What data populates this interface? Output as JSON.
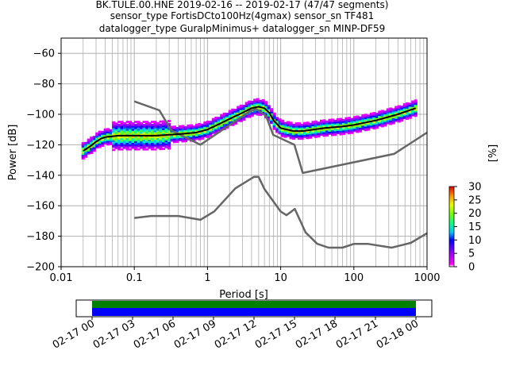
{
  "title_lines": [
    "BK.TULE.00.HNE   2019-02-16 -- 2019-02-17  (47/47 segments)",
    "sensor_type FortisDCto100Hz(4gmax) sensor_sn TF481",
    "datalogger_type GuralpMinimus+ datalogger_sn MINP-DF59"
  ],
  "chart_data": {
    "type": "heatmap",
    "xlabel": "Period [s]",
    "ylabel": "Power [dB]",
    "xscale": "log",
    "xlim": [
      0.01,
      1000
    ],
    "ylim": [
      -200,
      -50
    ],
    "grid": true,
    "x_ticks": [
      {
        "value": 0.01,
        "label": "0.01"
      },
      {
        "value": 0.1,
        "label": "0.1"
      },
      {
        "value": 1,
        "label": "1"
      },
      {
        "value": 10,
        "label": "10"
      },
      {
        "value": 100,
        "label": "100"
      },
      {
        "value": 1000,
        "label": "1000"
      }
    ],
    "y_ticks": [
      {
        "value": -60,
        "label": "−60"
      },
      {
        "value": -80,
        "label": "−80"
      },
      {
        "value": -100,
        "label": "−100"
      },
      {
        "value": -120,
        "label": "−120"
      },
      {
        "value": -140,
        "label": "−140"
      },
      {
        "value": -160,
        "label": "−160"
      },
      {
        "value": -180,
        "label": "−180"
      },
      {
        "value": -200,
        "label": "−200"
      }
    ],
    "mode_curve": {
      "x": [
        0.02,
        0.025,
        0.03,
        0.035,
        0.04,
        0.06,
        0.1,
        0.2,
        0.4,
        0.7,
        1.0,
        1.5,
        2.0,
        3.0,
        4.0,
        5.0,
        6.0,
        7.0,
        8.0,
        10.0,
        15.0,
        20.0,
        40.0,
        70.0,
        100.0,
        200.0,
        400.0,
        700.0
      ],
      "y": [
        -124,
        -121,
        -118,
        -116,
        -115,
        -114,
        -114,
        -114,
        -113,
        -112,
        -110,
        -106,
        -103,
        -99,
        -96,
        -95,
        -96,
        -99,
        -104,
        -109,
        -111,
        -111,
        -109,
        -108,
        -107,
        -104,
        -100,
        -96
      ]
    },
    "nlnm": {
      "x": [
        0.1,
        0.17,
        0.4,
        0.8,
        1.24,
        2.4,
        4.3,
        5.0,
        6.0,
        10.0,
        12.0,
        15.6,
        21.9,
        31.6,
        45.0,
        70.0,
        101.0,
        154.0,
        328.0,
        600.0,
        1000.0
      ],
      "y": [
        -168,
        -166.7,
        -166.7,
        -169.2,
        -163.7,
        -148.6,
        -141.1,
        -141.1,
        -149,
        -163.8,
        -166.2,
        -162.1,
        -177.5,
        -185,
        -187.5,
        -187.5,
        -185,
        -185,
        -187.5,
        -184.4,
        -178
      ]
    },
    "nhnm": {
      "x": [
        0.1,
        0.22,
        0.32,
        0.8,
        3.8,
        4.6,
        6.3,
        7.9,
        15.4,
        20.0,
        354.8,
        1000.0
      ],
      "y": [
        -91.5,
        -97.4,
        -110.5,
        -120,
        -98,
        -96.5,
        -101,
        -113.5,
        -120,
        -138.5,
        -126,
        -112
      ]
    },
    "colorbar": {
      "label": "[%]",
      "min": 0,
      "max": 30,
      "ticks": [
        {
          "value": 0,
          "label": "0"
        },
        {
          "value": 5,
          "label": "5"
        },
        {
          "value": 10,
          "label": "10"
        },
        {
          "value": 15,
          "label": "15"
        },
        {
          "value": 20,
          "label": "20"
        },
        {
          "value": 25,
          "label": "25"
        },
        {
          "value": 30,
          "label": "30"
        }
      ]
    }
  },
  "timeline": {
    "tick_labels": [
      "02-17 00",
      "02-17 03",
      "02-17 06",
      "02-17 09",
      "02-17 12",
      "02-17 15",
      "02-17 18",
      "02-17 21",
      "02-18 00"
    ],
    "data_color": "#008000",
    "gap_free_color": "#0000ff"
  }
}
